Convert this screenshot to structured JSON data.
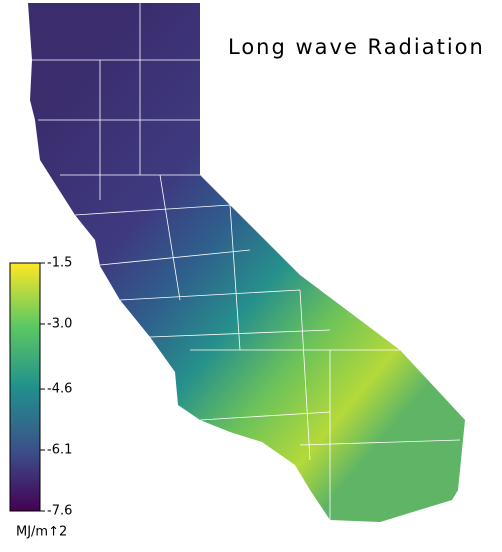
{
  "title": "Long wave Radiation",
  "colorbar": {
    "lim": [
      -7.6,
      -1.5
    ],
    "ticks": [
      -1.5,
      {
        "value": -3,
        "label": "-3.0"
      },
      -4.6,
      -6.1,
      -7.6
    ],
    "label": "MJ/m↑2"
  }
}
